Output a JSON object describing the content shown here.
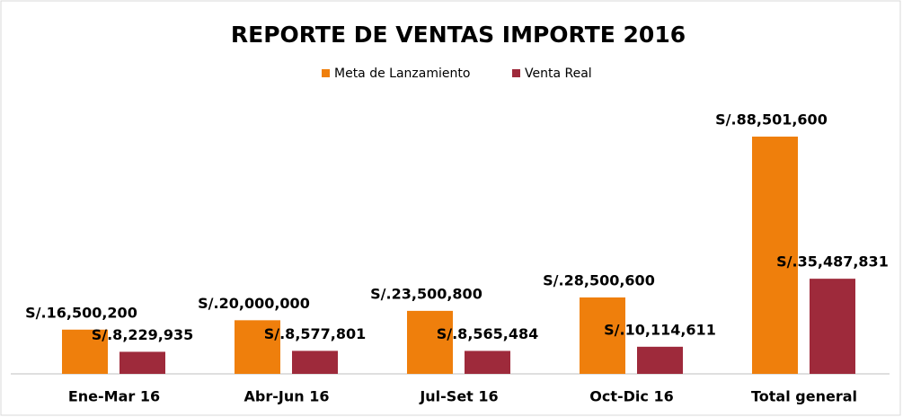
{
  "chart_data": {
    "type": "bar",
    "title": "REPORTE DE VENTAS IMPORTE 2016",
    "categories": [
      "Ene-Mar 16",
      "Abr-Jun 16",
      "Jul-Set 16",
      "Oct-Dic 16",
      "Total general"
    ],
    "series": [
      {
        "name": "Meta de Lanzamiento",
        "color": "#ef7f0c",
        "values": [
          16500200,
          20000000,
          23500800,
          28500600,
          88501600
        ],
        "value_labels": [
          "S/.16,500,200",
          "S/.20,000,000",
          "S/.23,500,800",
          "S/.28,500,600",
          "S/.88,501,600"
        ]
      },
      {
        "name": "Venta Real",
        "color": "#9e2a3b",
        "values": [
          8229935,
          8577801,
          8565484,
          10114611,
          35487831
        ],
        "value_labels": [
          "S/.8,229,935",
          "S/.8,577,801",
          "S/.8,565,484",
          "S/.10,114,611",
          "S/.35,487,831"
        ]
      }
    ],
    "legend": "top"
  }
}
